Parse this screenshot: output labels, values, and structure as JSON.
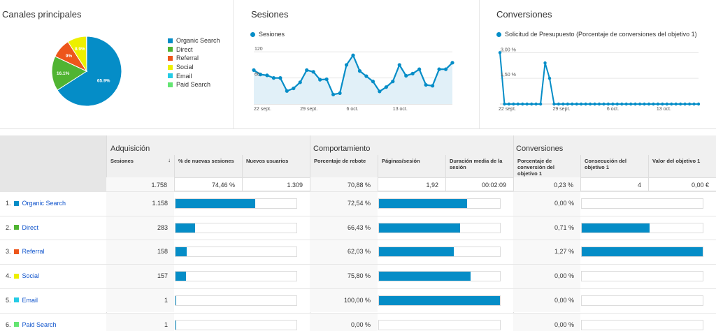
{
  "panels": {
    "channels": {
      "title": "Canales principales",
      "legend": [
        {
          "label": "Organic Search",
          "color": "#058dc7"
        },
        {
          "label": "Direct",
          "color": "#50b432"
        },
        {
          "label": "Referral",
          "color": "#ed561b"
        },
        {
          "label": "Social",
          "color": "#edef00"
        },
        {
          "label": "Email",
          "color": "#24cbe5"
        },
        {
          "label": "Paid Search",
          "color": "#64e572"
        }
      ]
    },
    "sessions": {
      "title": "Sesiones",
      "legend_label": "Sesiones"
    },
    "conversions": {
      "title": "Conversiones",
      "legend_label": "Solicitud de Presupuesto (Porcentaje de conversiones del objetivo 1)"
    }
  },
  "chart_data": [
    {
      "type": "pie",
      "title": "Canales principales",
      "categories": [
        "Organic Search",
        "Direct",
        "Referral",
        "Social",
        "Email",
        "Paid Search"
      ],
      "values": [
        65.9,
        16.1,
        9.0,
        8.9,
        0.06,
        0.06
      ],
      "data_labels": [
        "65.9%",
        "16.1%",
        "9%",
        "8.9%",
        "",
        ""
      ]
    },
    {
      "type": "area",
      "title": "Sesiones",
      "series": [
        {
          "name": "Sesiones",
          "values": [
            78,
            68,
            66,
            60,
            60,
            30,
            36,
            50,
            78,
            74,
            56,
            57,
            22,
            25,
            90,
            112,
            76,
            64,
            52,
            29,
            39,
            52,
            90,
            65,
            70,
            80,
            44,
            42,
            80,
            80,
            95
          ]
        }
      ],
      "x_tick_labels": [
        "22 sept.",
        "29 sept.",
        "6 oct.",
        "13 oct."
      ],
      "x_tick_index": [
        0,
        7,
        14,
        21
      ],
      "y_tick_labels": [
        "120",
        "60"
      ],
      "ylim": [
        0,
        130
      ]
    },
    {
      "type": "line",
      "title": "Conversiones",
      "series": [
        {
          "name": "Solicitud de Presupuesto (Porcentaje de conversiones del objetivo 1)",
          "values": [
            3.0,
            0,
            0,
            0,
            0,
            0,
            0,
            0,
            0,
            0,
            2.4,
            1.5,
            0,
            0,
            0,
            0,
            0,
            0,
            0,
            0,
            0,
            0,
            0,
            0,
            0,
            0,
            0,
            0,
            0,
            0,
            0,
            0,
            0,
            0,
            0,
            0,
            0,
            0,
            0,
            0,
            0,
            0,
            0,
            0,
            0
          ]
        }
      ],
      "x_tick_labels": [
        "22 sept.",
        "29 sept.",
        "6 oct.",
        "13 oct."
      ],
      "x_tick_index": [
        0,
        12,
        24,
        35
      ],
      "y_tick_labels": [
        "3,00 %",
        "1,50 %"
      ],
      "ylim": [
        0,
        3.3
      ]
    }
  ],
  "table": {
    "sections": {
      "acquisition": "Adquisición",
      "behavior": "Comportamiento",
      "conversions": "Conversiones"
    },
    "headers": [
      "Sesiones",
      "% de nuevas sesiones",
      "Nuevos usuarios",
      "Porcentaje de rebote",
      "Páginas/sesión",
      "Duración media de la sesión",
      "Porcentaje de conversión del objetivo 1",
      "Consecución del objetivo 1",
      "Valor del objetivo 1"
    ],
    "sort_indicator": "↓",
    "totals": [
      "1.758",
      "74,46 %",
      "1.309",
      "70,88 %",
      "1,92",
      "00:02:09",
      "0,23 %",
      "4",
      "0,00 €"
    ],
    "rows": [
      {
        "idx": "1.",
        "label": "Organic Search",
        "color": "#058dc7",
        "sessions": "1.158",
        "new_sessions": 0.659,
        "bounce": "72,54 %",
        "pages": 0.73,
        "conv_rate": "0,00 %",
        "conv_bar": 0.0
      },
      {
        "idx": "2.",
        "label": "Direct",
        "color": "#50b432",
        "sessions": "283",
        "new_sessions": 0.161,
        "bounce": "66,43 %",
        "pages": 0.67,
        "conv_rate": "0,71 %",
        "conv_bar": 0.56
      },
      {
        "idx": "3.",
        "label": "Referral",
        "color": "#ed561b",
        "sessions": "158",
        "new_sessions": 0.09,
        "bounce": "62,03 %",
        "pages": 0.62,
        "conv_rate": "1,27 %",
        "conv_bar": 1.0
      },
      {
        "idx": "4.",
        "label": "Social",
        "color": "#edef00",
        "sessions": "157",
        "new_sessions": 0.089,
        "bounce": "75,80 %",
        "pages": 0.76,
        "conv_rate": "0,00 %",
        "conv_bar": 0.0
      },
      {
        "idx": "5.",
        "label": "Email",
        "color": "#24cbe5",
        "sessions": "1",
        "new_sessions": 0.001,
        "bounce": "100,00 %",
        "pages": 1.0,
        "conv_rate": "0,00 %",
        "conv_bar": 0.0
      },
      {
        "idx": "6.",
        "label": "Paid Search",
        "color": "#64e572",
        "sessions": "1",
        "new_sessions": 0.001,
        "bounce": "0,00 %",
        "pages": 0.0,
        "conv_rate": "0,00 %",
        "conv_bar": 0.0
      }
    ]
  }
}
